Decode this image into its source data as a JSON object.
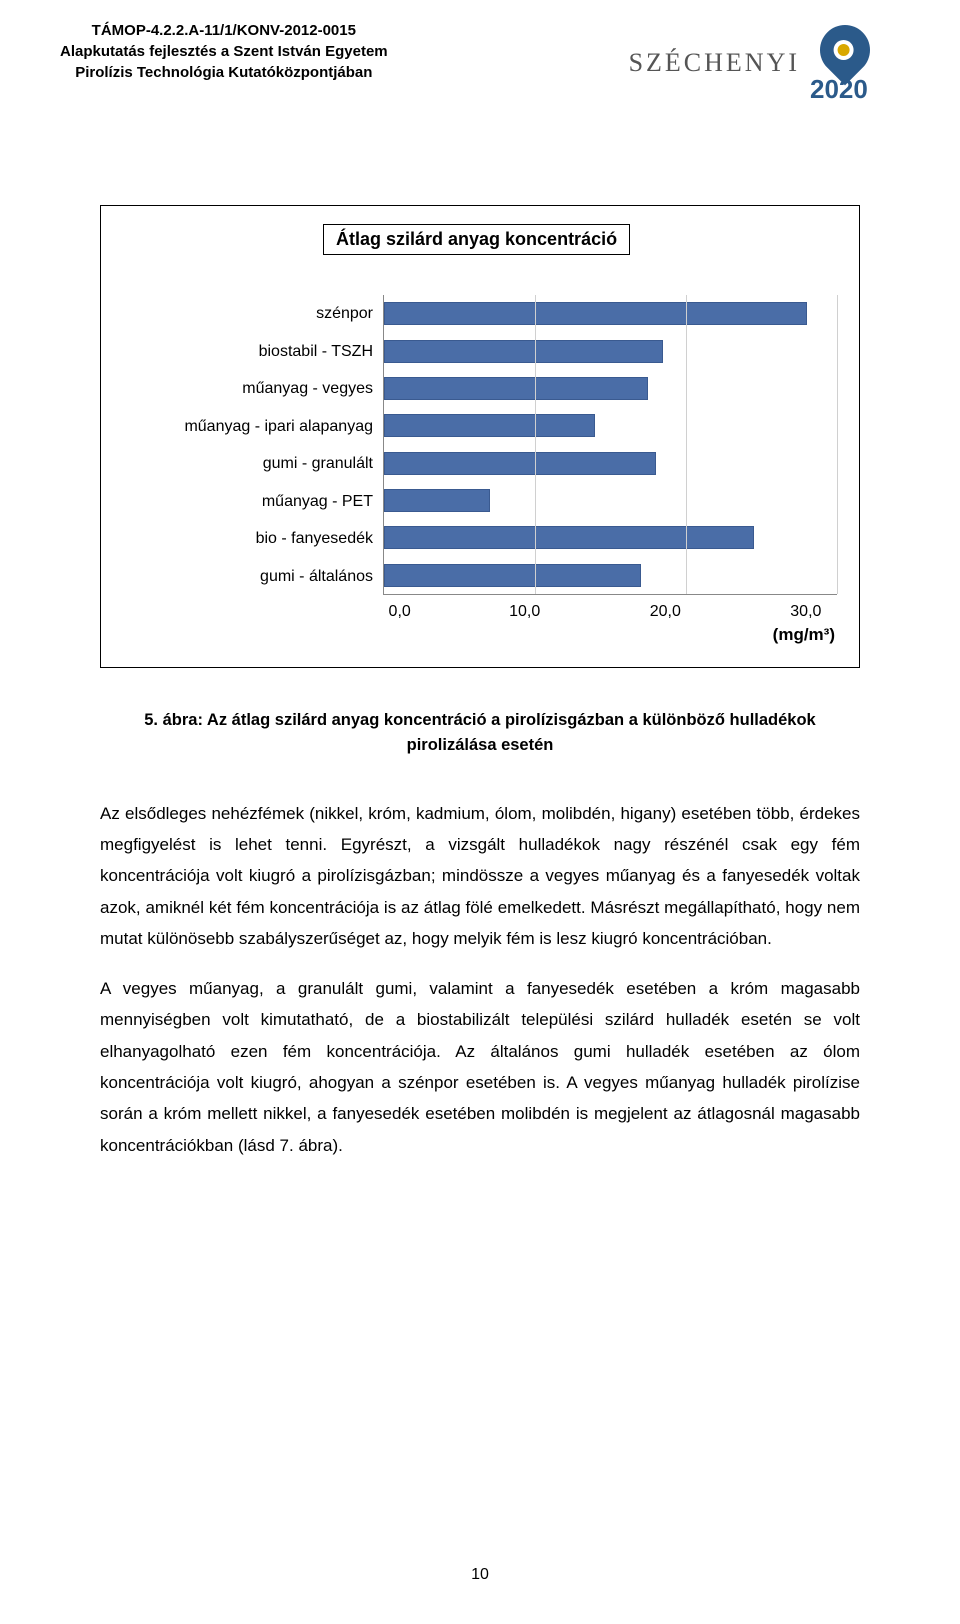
{
  "header": {
    "line1": "TÁMOP-4.2.2.A-11/1/KONV-2012-0015",
    "line2": "Alapkutatás fejlesztés a Szent István Egyetem",
    "line3": "Pirolízis Technológia Kutatóközpontjában",
    "brand": "SZÉCHENYI",
    "year": "2020"
  },
  "chart": {
    "type": "bar",
    "title": "Átlag szilárd anyag koncentráció",
    "orientation": "horizontal",
    "categories": [
      "szénpor",
      "biostabil - TSZH",
      "műanyag - vegyes",
      "műanyag - ipari alapanyag",
      "gumi - granulált",
      "műanyag - PET",
      "bio - fanyesedék",
      "gumi - általános"
    ],
    "values": [
      28.0,
      18.5,
      17.5,
      14.0,
      18.0,
      7.0,
      24.5,
      17.0
    ],
    "xlim": [
      0,
      30
    ],
    "xtick_step": 10,
    "xticks": [
      "0,0",
      "10,0",
      "20,0",
      "30,0"
    ],
    "x_unit": "(mg/m³)",
    "bar_color": "#4a6da7",
    "bar_border_color": "#3a5a90",
    "grid_color": "#d0d0d0",
    "background_color": "#ffffff",
    "title_fontsize": 18,
    "label_fontsize": 16,
    "tick_fontsize": 16
  },
  "caption": {
    "prefix": "5. ábra:",
    "text": " Az átlag szilárd anyag koncentráció a pirolízisgázban a különböző hulladékok pirolizálása esetén"
  },
  "paragraphs": {
    "p1": "Az elsődleges nehézfémek (nikkel, króm, kadmium, ólom, molibdén, higany) esetében több, érdekes megfigyelést is lehet tenni. Egyrészt, a vizsgált hulladékok nagy részénél csak egy fém koncentrációja volt kiugró a pirolízisgázban; mindössze a vegyes műanyag és a fanyesedék voltak azok, amiknél két fém koncentrációja is az átlag fölé emelkedett. Másrészt megállapítható, hogy nem mutat különösebb szabályszerűséget az, hogy melyik fém is lesz kiugró koncentrációban.",
    "p2": "A vegyes műanyag, a granulált gumi, valamint a fanyesedék esetében a króm magasabb mennyiségben volt kimutatható, de a biostabilizált települési szilárd hulladék esetén se volt elhanyagolható ezen fém koncentrációja. Az általános gumi hulladék esetében az ólom koncentrációja volt kiugró, ahogyan a szénpor esetében is. A vegyes műanyag hulladék pirolízise során a króm mellett nikkel, a fanyesedék esetében molibdén is megjelent az átlagosnál magasabb koncentrációkban (lásd 7. ábra)."
  },
  "page_number": "10"
}
